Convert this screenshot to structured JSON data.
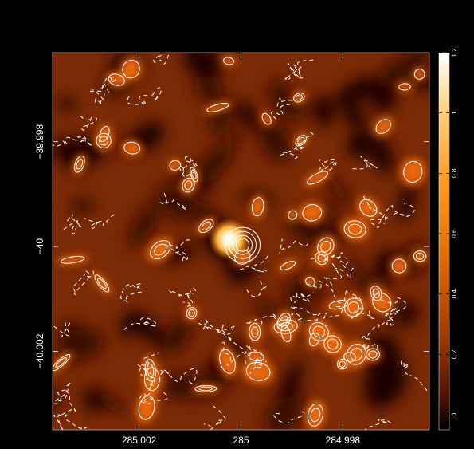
{
  "chart_data": {
    "type": "heatmap",
    "title": "",
    "xlabel": "",
    "ylabel": "",
    "x_ticks": [
      {
        "value": 285.002,
        "label": "285.002"
      },
      {
        "value": 285.0,
        "label": "285"
      },
      {
        "value": 284.998,
        "label": "284.998"
      }
    ],
    "y_ticks": [
      {
        "value": -39.998,
        "label": "−39.998"
      },
      {
        "value": -40.0,
        "label": "−40"
      },
      {
        "value": -40.002,
        "label": "−40.002"
      }
    ],
    "x_range": [
      285.0037,
      284.9963
    ],
    "y_range": [
      -40.0035,
      -39.9963
    ],
    "x_direction": "decreasing to the right (RA)",
    "colormap": "heat (black-red-orange-yellow-white)",
    "colorbar": {
      "range": [
        -0.05,
        1.2
      ],
      "ticks": [
        {
          "value": 0,
          "label": "0"
        },
        {
          "value": 0.2,
          "label": "0.2"
        },
        {
          "value": 0.4,
          "label": "0.4"
        },
        {
          "value": 0.6,
          "label": "0.6"
        },
        {
          "value": 0.8,
          "label": "0.8"
        },
        {
          "value": 1,
          "label": "1"
        },
        {
          "value": 1.2,
          "label": "1.2"
        }
      ]
    },
    "peak_source": {
      "x": 285.0,
      "y": -40.0,
      "value": 1.2
    },
    "contours": "white, positive levels solid, negative levels dashed",
    "colors": {
      "background": "#000000",
      "contour": "#ffffff",
      "tick": "#ffffff"
    }
  }
}
